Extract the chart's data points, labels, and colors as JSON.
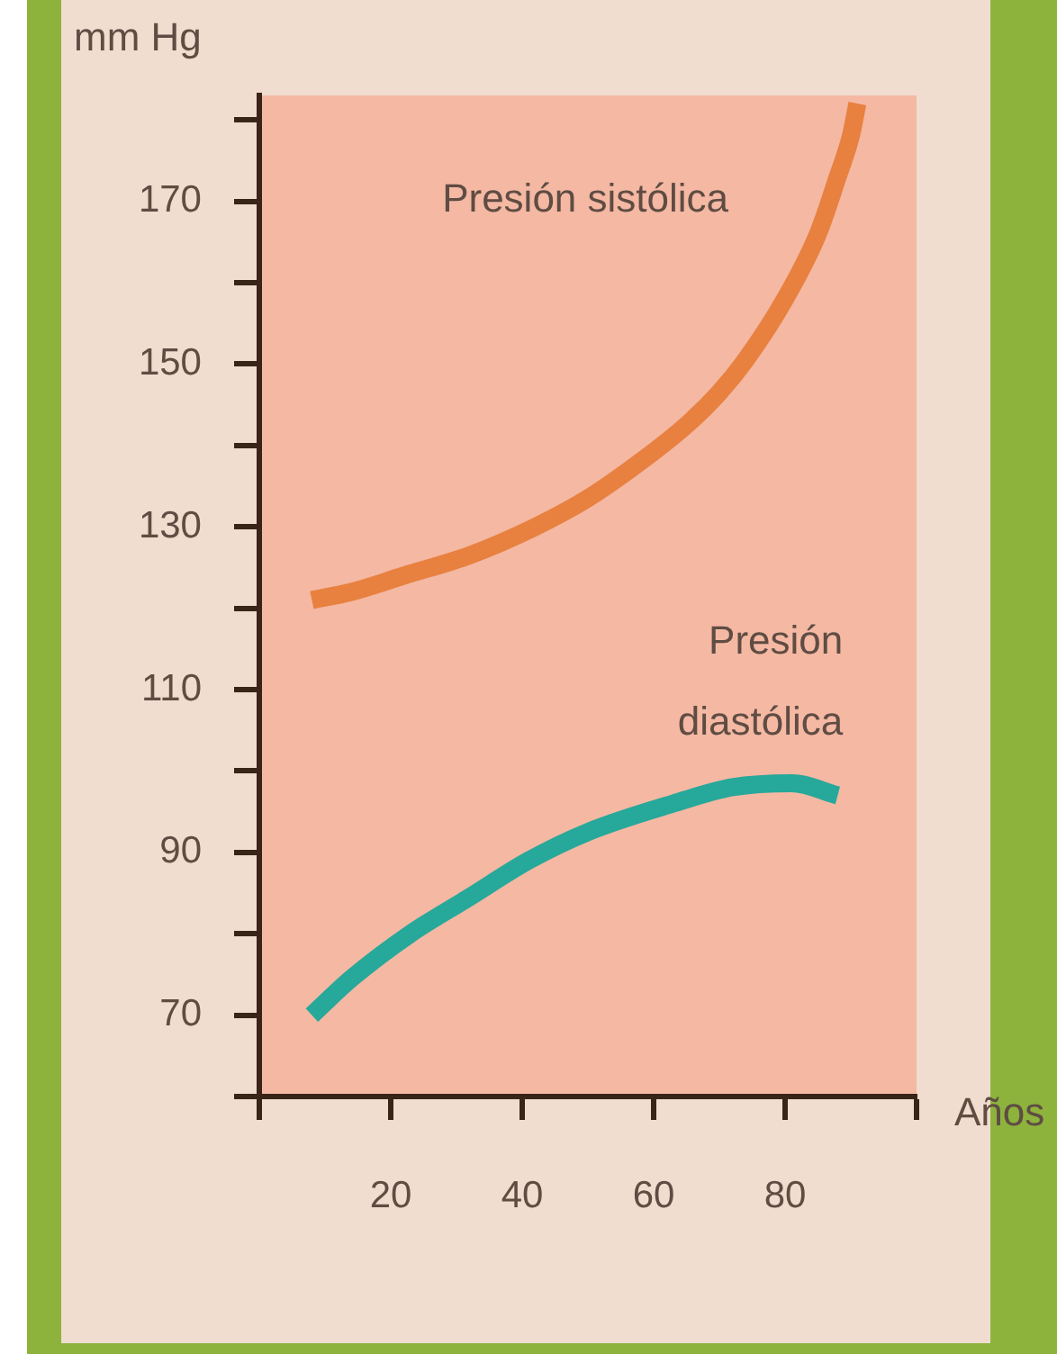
{
  "chart_data": {
    "type": "line",
    "ylabel": "mm Hg",
    "xlabel": "Años",
    "xlim": [
      0,
      100
    ],
    "xticks": [
      {
        "value": 0,
        "label": null
      },
      20,
      40,
      60,
      80,
      {
        "value": 100,
        "label": null
      }
    ],
    "ylim": [
      60,
      183
    ],
    "yticks": [
      {
        "value": 60,
        "label": null
      },
      70,
      {
        "value": 80,
        "label": null
      },
      90,
      {
        "value": 100,
        "label": null
      },
      110,
      {
        "value": 120,
        "label": null
      },
      130,
      {
        "value": 140,
        "label": null
      },
      150,
      {
        "value": 160,
        "label": null
      },
      170,
      {
        "value": 180,
        "label": null
      }
    ],
    "grid": false,
    "legend": false,
    "marker": "none",
    "series": [
      {
        "name": "Presión sistólica",
        "color": "#e8803f",
        "x": [
          8,
          14,
          22,
          32,
          42,
          50,
          58,
          65,
          70,
          74,
          80,
          85,
          88,
          90,
          91
        ],
        "values": [
          121,
          122,
          124,
          126.5,
          130,
          133.5,
          138,
          142.5,
          146.5,
          150.5,
          158,
          166,
          173,
          178,
          182
        ]
      },
      {
        "name": "Presión diastólica",
        "color": "#26a89a",
        "x": [
          8,
          14,
          23,
          32,
          41,
          50,
          63,
          72,
          81,
          88
        ],
        "values": [
          70,
          74.5,
          80,
          84.5,
          89,
          92.5,
          96,
          98,
          98.5,
          97
        ]
      }
    ]
  }
}
